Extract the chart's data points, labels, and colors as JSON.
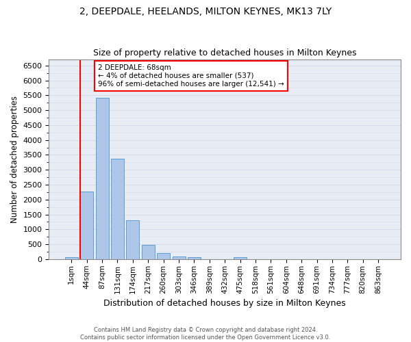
{
  "title1": "2, DEEPDALE, HEELANDS, MILTON KEYNES, MK13 7LY",
  "title2": "Size of property relative to detached houses in Milton Keynes",
  "xlabel": "Distribution of detached houses by size in Milton Keynes",
  "ylabel": "Number of detached properties",
  "footer1": "Contains HM Land Registry data © Crown copyright and database right 2024.",
  "footer2": "Contains public sector information licensed under the Open Government Licence v3.0.",
  "bar_labels": [
    "1sqm",
    "44sqm",
    "87sqm",
    "131sqm",
    "174sqm",
    "217sqm",
    "260sqm",
    "303sqm",
    "346sqm",
    "389sqm",
    "432sqm",
    "475sqm",
    "518sqm",
    "561sqm",
    "604sqm",
    "648sqm",
    "691sqm",
    "734sqm",
    "777sqm",
    "820sqm",
    "863sqm"
  ],
  "bar_values": [
    70,
    2280,
    5420,
    3380,
    1310,
    480,
    215,
    100,
    60,
    0,
    0,
    65,
    0,
    0,
    0,
    0,
    0,
    0,
    0,
    0,
    0
  ],
  "bar_color": "#aec6e8",
  "bar_edge_color": "#5a9fd4",
  "vline_color": "red",
  "annotation_text": "2 DEEPDALE: 68sqm\n← 4% of detached houses are smaller (537)\n96% of semi-detached houses are larger (12,541) →",
  "ylim": [
    0,
    6700
  ],
  "yticks": [
    0,
    500,
    1000,
    1500,
    2000,
    2500,
    3000,
    3500,
    4000,
    4500,
    5000,
    5500,
    6000,
    6500
  ],
  "grid_color": "#d0d8e8",
  "bg_color": "#e8edf5"
}
